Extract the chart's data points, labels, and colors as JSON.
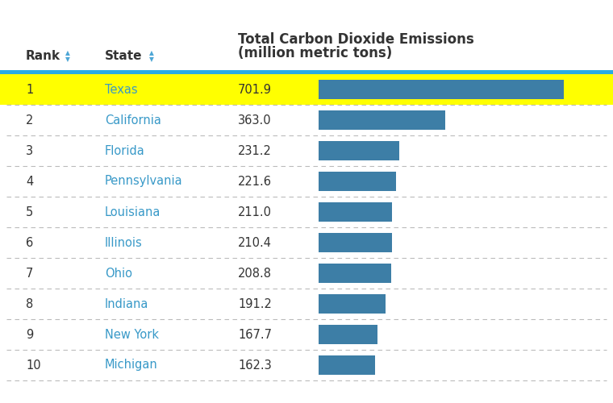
{
  "title_line1": "Total Carbon Dioxide Emissions",
  "title_line2": "(million metric tons)",
  "col_rank": "Rank",
  "col_state": "State",
  "ranks": [
    1,
    2,
    3,
    4,
    5,
    6,
    7,
    8,
    9,
    10
  ],
  "states": [
    "Texas",
    "California",
    "Florida",
    "Pennsylvania",
    "Louisiana",
    "Illinois",
    "Ohio",
    "Indiana",
    "New York",
    "Michigan"
  ],
  "values": [
    701.9,
    363.0,
    231.2,
    221.6,
    211.0,
    210.4,
    208.8,
    191.2,
    167.7,
    162.3
  ],
  "highlight_row": 0,
  "highlight_color": "#FFFF00",
  "bar_color": "#3d7ea6",
  "text_color_state": "#3899c8",
  "text_color_dark": "#333333",
  "separator_color": "#bbbbbb",
  "header_line_color": "#29abe2",
  "fig_bg": "#ffffff",
  "max_bar_value": 750,
  "title_fontsize": 12,
  "header_fontsize": 11,
  "cell_fontsize": 10.5
}
